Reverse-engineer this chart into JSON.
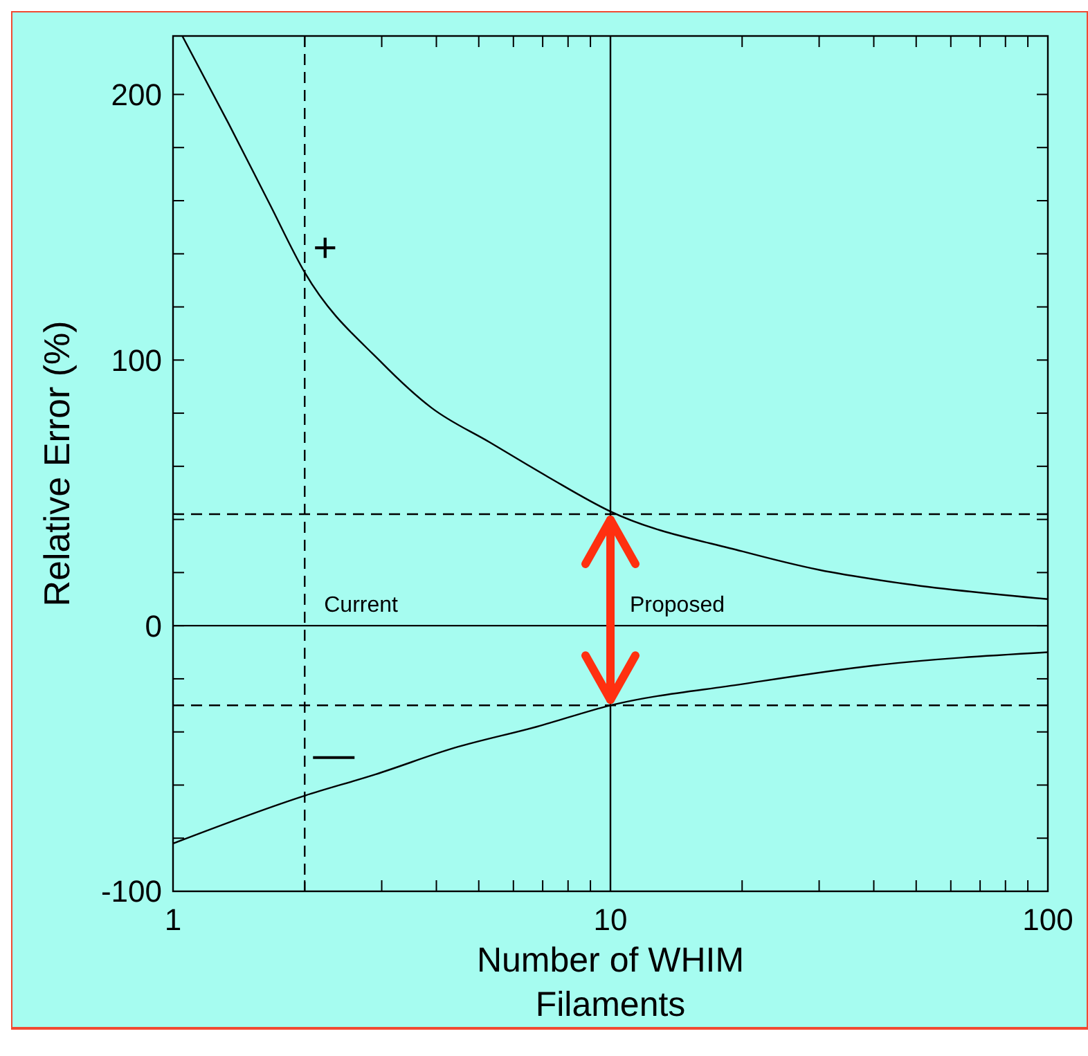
{
  "chart_data": {
    "type": "line",
    "xlabel": "Number of WHIM Filaments",
    "ylabel": "Relative Error (%)",
    "log": "x",
    "xlim": [
      1,
      100
    ],
    "xticks": [
      1,
      {
        "value": 2,
        "label": null
      },
      {
        "value": 3,
        "label": null
      },
      {
        "value": 4,
        "label": null
      },
      {
        "value": 5,
        "label": null
      },
      {
        "value": 6,
        "label": null
      },
      {
        "value": 7,
        "label": null
      },
      {
        "value": 8,
        "label": null
      },
      {
        "value": 9,
        "label": null
      },
      10,
      {
        "value": 20,
        "label": null
      },
      {
        "value": 30,
        "label": null
      },
      {
        "value": 40,
        "label": null
      },
      {
        "value": 50,
        "label": null
      },
      {
        "value": 60,
        "label": null
      },
      {
        "value": 70,
        "label": null
      },
      {
        "value": 80,
        "label": null
      },
      {
        "value": 90,
        "label": null
      },
      100
    ],
    "ylim": [
      -100,
      222
    ],
    "yticks": [
      -100,
      {
        "value": -80,
        "label": null
      },
      {
        "value": -60,
        "label": null
      },
      {
        "value": -40,
        "label": null
      },
      {
        "value": -20,
        "label": null
      },
      0,
      {
        "value": 20,
        "label": null
      },
      {
        "value": 40,
        "label": null
      },
      {
        "value": 60,
        "label": null
      },
      {
        "value": 80,
        "label": null
      },
      100,
      {
        "value": 120,
        "label": null
      },
      {
        "value": 140,
        "label": null
      },
      {
        "value": 160,
        "label": null
      },
      {
        "value": 180,
        "label": null
      },
      200
    ],
    "marker": "none",
    "line_style": "solid",
    "series": [
      {
        "color": "#000000",
        "x": [
          1.05,
          1.34,
          1.66,
          2,
          3,
          3.9,
          5.3,
          7.2,
          10,
          20,
          30,
          46,
          100
        ],
        "values": [
          222,
          189,
          159,
          133,
          99,
          82,
          69,
          56,
          43,
          28,
          21,
          16,
          10
        ]
      },
      {
        "color": "#000000",
        "x": [
          1,
          2,
          2.9,
          4.4,
          6.8,
          10,
          20,
          40,
          100
        ],
        "values": [
          -82,
          -64,
          -56,
          -46,
          -38,
          -30,
          -22,
          -15,
          -10
        ]
      }
    ],
    "ref_lines": [
      {
        "axis": "x",
        "value": 2,
        "line_style": "dashed",
        "label": "Current"
      },
      {
        "axis": "x",
        "value": 10,
        "line_style": "solid",
        "label": "Proposed"
      },
      {
        "axis": "y",
        "value": 42,
        "line_style": "dashed"
      },
      {
        "axis": "y",
        "value": -30,
        "line_style": "dashed"
      },
      {
        "axis": "y",
        "value": 0,
        "line_style": "solid"
      }
    ],
    "annotations": [
      "+",
      "—"
    ]
  }
}
